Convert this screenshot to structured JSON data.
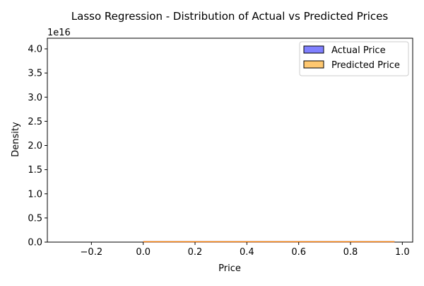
{
  "chart_data": {
    "type": "histogram",
    "title": "Lasso Regression - Distribution of Actual vs Predicted Prices",
    "xlabel": "Price",
    "ylabel": "Density",
    "y_offset_text": "1e16",
    "xlim": [
      -0.37,
      1.04
    ],
    "ylim": [
      0,
      4.22
    ],
    "x_ticks": [
      {
        "value": -0.2,
        "label": "−0.2"
      },
      {
        "value": 0.0,
        "label": "0.0"
      },
      {
        "value": 0.2,
        "label": "0.2"
      },
      {
        "value": 0.4,
        "label": "0.4"
      },
      {
        "value": 0.6,
        "label": "0.6"
      },
      {
        "value": 0.8,
        "label": "0.8"
      },
      {
        "value": 1.0,
        "label": "1.0"
      }
    ],
    "y_ticks": [
      {
        "value": 0.0,
        "label": "0.0"
      },
      {
        "value": 0.5,
        "label": "0.5"
      },
      {
        "value": 1.0,
        "label": "1.0"
      },
      {
        "value": 1.5,
        "label": "1.5"
      },
      {
        "value": 2.0,
        "label": "2.0"
      },
      {
        "value": 2.5,
        "label": "2.5"
      },
      {
        "value": 3.0,
        "label": "3.0"
      },
      {
        "value": 3.5,
        "label": "3.5"
      },
      {
        "value": 4.0,
        "label": "4.0"
      }
    ],
    "series": [
      {
        "name": "Actual Price",
        "color": "#8080ff",
        "edge": "#000000",
        "range": [
          0.0,
          0.97
        ],
        "line_color": "#0000ff"
      },
      {
        "name": "Predicted Price",
        "color": "#ffc870",
        "edge": "#000000",
        "range": [
          0.0,
          0.97
        ],
        "line_color": "#ff8c00"
      }
    ],
    "legend_position": "top-right",
    "grid": false
  }
}
